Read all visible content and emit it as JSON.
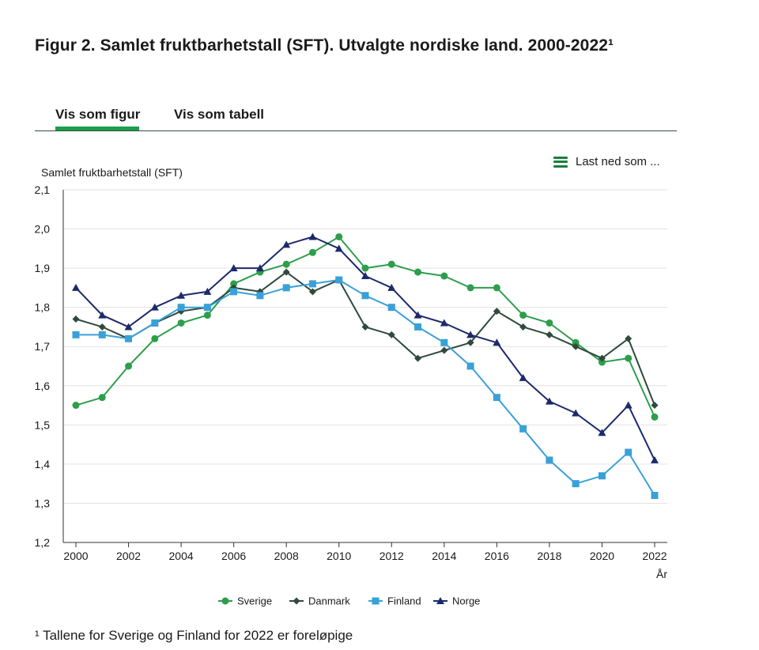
{
  "title": "Figur 2. Samlet fruktbarhetstall (SFT). Utvalgte nordiske land. 2000-2022¹",
  "tabs": [
    {
      "label": "Vis som figur",
      "active": true
    },
    {
      "label": "Vis som tabell",
      "active": false
    }
  ],
  "download_label": "Last ned som ...",
  "footnote": "¹ Tallene for Sverige og Finland for 2022 er foreløpige",
  "chart_data": {
    "type": "line",
    "title": "",
    "ylabel": "Samlet fruktbarhetstall (SFT)",
    "xlabel": "År",
    "ylim": [
      1.2,
      2.1
    ],
    "yticks": [
      1.2,
      1.3,
      1.4,
      1.5,
      1.6,
      1.7,
      1.8,
      1.9,
      2.0,
      2.1
    ],
    "ytick_labels": [
      "1,2",
      "1,3",
      "1,4",
      "1,5",
      "1,6",
      "1,7",
      "1,8",
      "1,9",
      "2,0",
      "2,1"
    ],
    "x": [
      2000,
      2001,
      2002,
      2003,
      2004,
      2005,
      2006,
      2007,
      2008,
      2009,
      2010,
      2011,
      2012,
      2013,
      2014,
      2015,
      2016,
      2017,
      2018,
      2019,
      2020,
      2021,
      2022
    ],
    "xticks": [
      2000,
      2002,
      2004,
      2006,
      2008,
      2010,
      2012,
      2014,
      2016,
      2018,
      2020,
      2022
    ],
    "legend_position": "bottom",
    "grid": true,
    "series": [
      {
        "name": "Sverige",
        "color": "#2e9e4b",
        "marker": "circle",
        "values": [
          1.55,
          1.57,
          1.65,
          1.72,
          1.76,
          1.78,
          1.86,
          1.89,
          1.91,
          1.94,
          1.98,
          1.9,
          1.91,
          1.89,
          1.88,
          1.85,
          1.85,
          1.78,
          1.76,
          1.71,
          1.66,
          1.67,
          1.52
        ]
      },
      {
        "name": "Danmark",
        "color": "#2f4a3c",
        "marker": "diamond",
        "values": [
          1.77,
          1.75,
          1.72,
          1.76,
          1.79,
          1.8,
          1.85,
          1.84,
          1.89,
          1.84,
          1.87,
          1.75,
          1.73,
          1.67,
          1.69,
          1.71,
          1.79,
          1.75,
          1.73,
          1.7,
          1.67,
          1.72,
          1.55
        ]
      },
      {
        "name": "Finland",
        "color": "#3aa0d8",
        "marker": "square",
        "values": [
          1.73,
          1.73,
          1.72,
          1.76,
          1.8,
          1.8,
          1.84,
          1.83,
          1.85,
          1.86,
          1.87,
          1.83,
          1.8,
          1.75,
          1.71,
          1.65,
          1.57,
          1.49,
          1.41,
          1.35,
          1.37,
          1.43,
          1.32
        ]
      },
      {
        "name": "Norge",
        "color": "#1b2a6b",
        "marker": "triangle",
        "values": [
          1.85,
          1.78,
          1.75,
          1.8,
          1.83,
          1.84,
          1.9,
          1.9,
          1.96,
          1.98,
          1.95,
          1.88,
          1.85,
          1.78,
          1.76,
          1.73,
          1.71,
          1.62,
          1.56,
          1.53,
          1.48,
          1.55,
          1.41
        ]
      }
    ]
  }
}
